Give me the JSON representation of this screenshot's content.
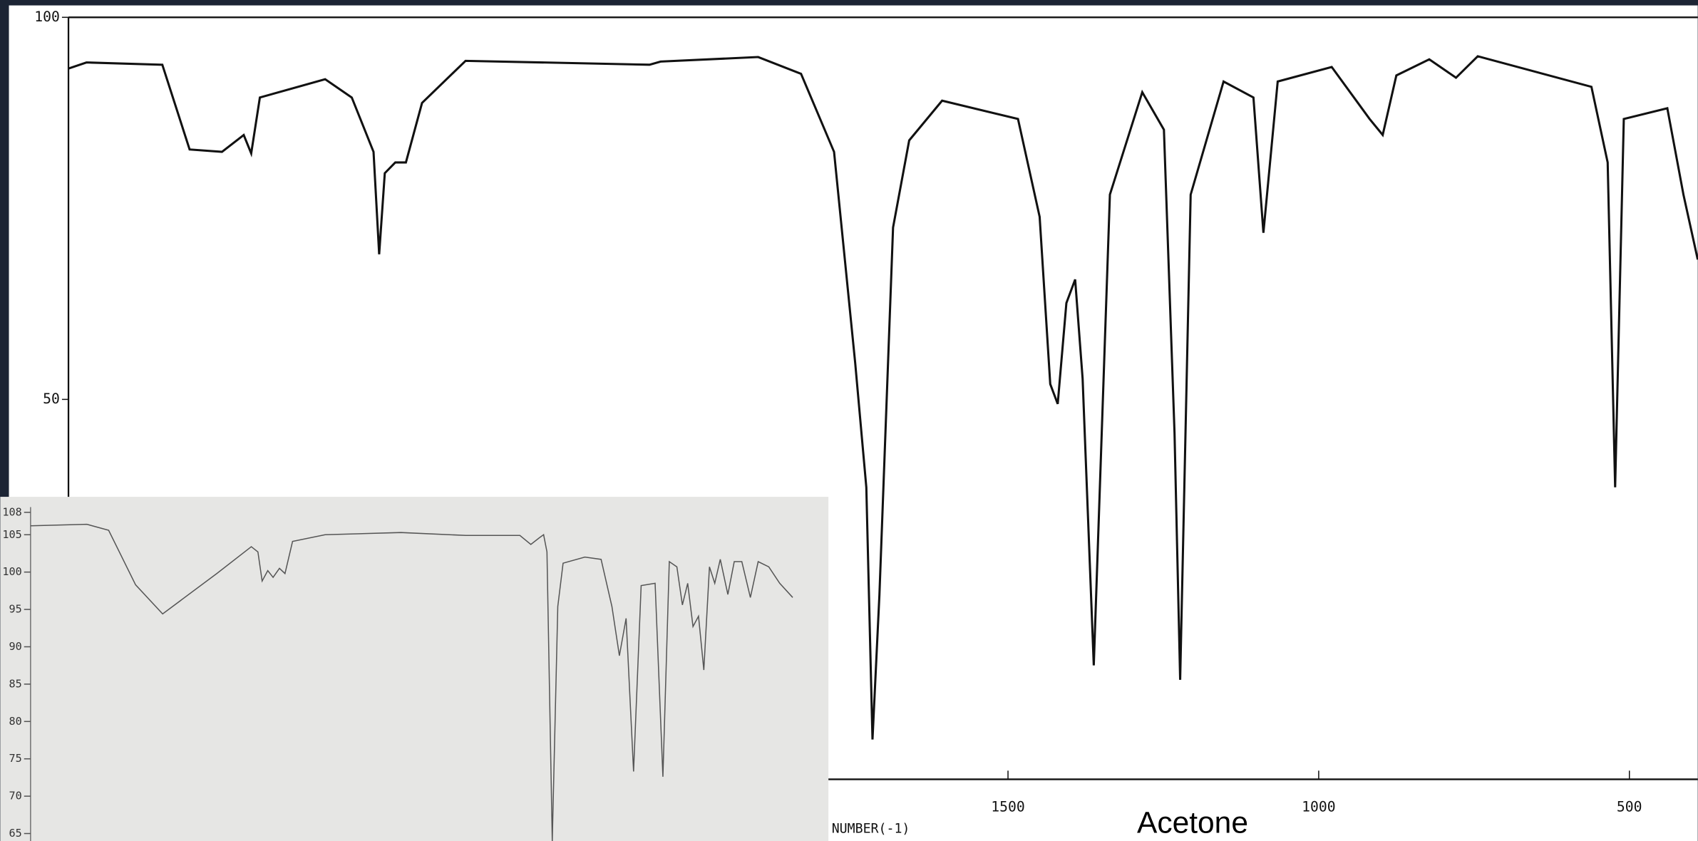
{
  "chart_data": [
    {
      "type": "line",
      "annotation": "Acetone",
      "xlabel": "NUMBER(-1)",
      "xlim": [
        3012,
        390
      ],
      "ylim": [
        0,
        100
      ],
      "xticks": [
        1500,
        1000,
        500
      ],
      "yticks": [
        100,
        50
      ],
      "color": "#111111",
      "series": [
        {
          "color": "#111111",
          "x": [
            3012,
            2983,
            2861,
            2817,
            2765,
            2730,
            2718,
            2704,
            2599,
            2556,
            2521,
            2512,
            2503,
            2486,
            2469,
            2443,
            2373,
            2077,
            2059,
            1902,
            1833,
            1780,
            1746,
            1728,
            1718,
            1707,
            1685,
            1659,
            1606,
            1484,
            1449,
            1432,
            1420,
            1406,
            1392,
            1380,
            1362,
            1336,
            1284,
            1249,
            1232,
            1223,
            1206,
            1153,
            1105,
            1089,
            1066,
            979,
            918,
            897,
            875,
            822,
            779,
            744,
            561,
            535,
            523,
            509,
            439,
            413,
            390
          ],
          "values": [
            93.3,
            94.1,
            93.8,
            82.7,
            82.4,
            84.6,
            82.2,
            89.5,
            91.9,
            89.5,
            82.4,
            69.0,
            79.6,
            81.0,
            81.0,
            88.8,
            94.3,
            93.8,
            94.2,
            94.8,
            92.6,
            82.4,
            54.8,
            38.5,
            5.5,
            24.4,
            72.5,
            83.9,
            89.1,
            86.7,
            73.9,
            52.0,
            49.4,
            62.6,
            65.7,
            52.7,
            15.2,
            76.8,
            90.2,
            85.3,
            45.6,
            13.3,
            76.8,
            91.6,
            89.5,
            71.8,
            91.6,
            93.5,
            86.7,
            84.6,
            92.4,
            94.5,
            92.1,
            94.9,
            90.9,
            81.0,
            38.5,
            86.7,
            88.1,
            76.8,
            68.3
          ]
        }
      ]
    },
    {
      "type": "line",
      "xlim": [
        4000,
        400
      ],
      "ylim": [
        64,
        108.7
      ],
      "yticks": [
        108,
        105,
        100,
        95,
        90,
        85,
        80,
        75,
        70,
        65
      ],
      "color": "#555555",
      "series": [
        {
          "color": "#555555",
          "x": [
            4000,
            3746,
            3648,
            3526,
            3404,
            3160,
            3004,
            2974,
            2955,
            2930,
            2906,
            2877,
            2852,
            2818,
            2671,
            2329,
            2036,
            1792,
            1743,
            1704,
            1685,
            1670,
            1646,
            1621,
            1597,
            1499,
            1426,
            1377,
            1343,
            1313,
            1279,
            1245,
            1182,
            1147,
            1118,
            1084,
            1059,
            1035,
            1011,
            986,
            962,
            937,
            913,
            888,
            854,
            825,
            791,
            752,
            717,
            669,
            620,
            561
          ],
          "values": [
            106.2,
            106.4,
            105.6,
            98.3,
            94.4,
            99.8,
            103.4,
            102.7,
            98.8,
            100.2,
            99.3,
            100.5,
            99.8,
            104.1,
            105.0,
            105.3,
            104.9,
            104.9,
            103.7,
            104.6,
            105.0,
            102.7,
            64.0,
            95.4,
            101.2,
            102.0,
            101.7,
            95.4,
            88.8,
            93.8,
            73.3,
            98.2,
            98.5,
            72.6,
            101.4,
            100.7,
            95.6,
            98.5,
            92.7,
            94.1,
            86.9,
            100.7,
            98.5,
            101.7,
            97.0,
            101.4,
            101.4,
            96.6,
            101.4,
            100.7,
            98.5,
            96.6
          ]
        }
      ]
    }
  ]
}
